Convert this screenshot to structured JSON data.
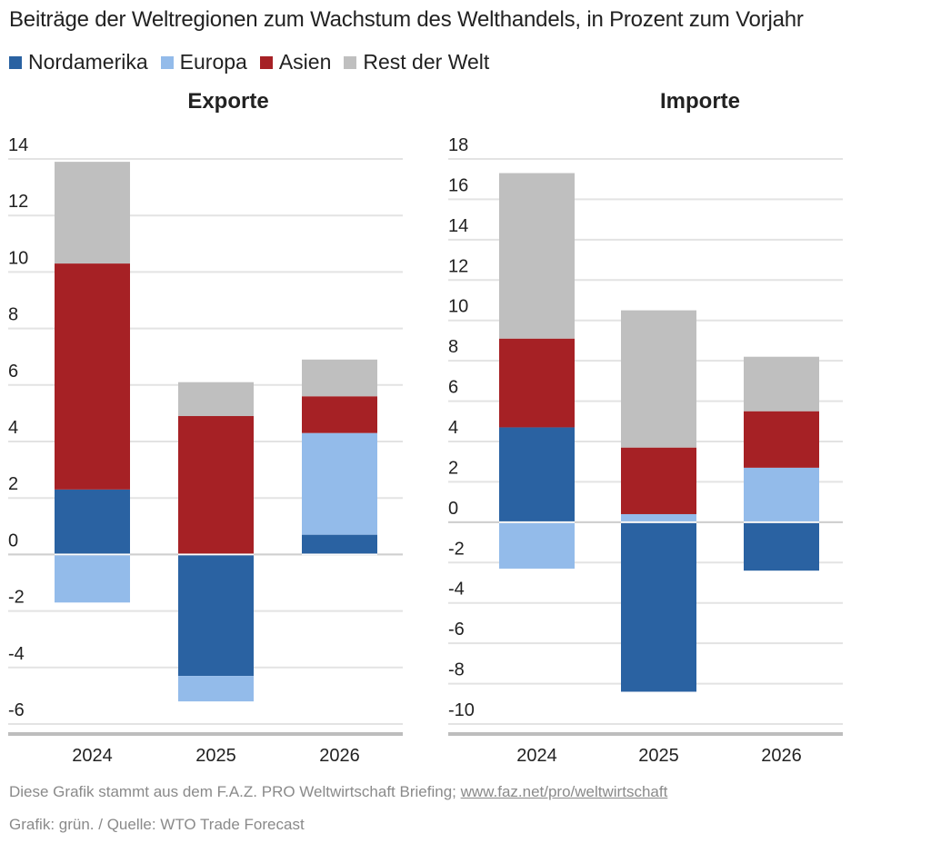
{
  "title": "Beiträge der Weltregionen zum Wachstum des Welthandels, in Prozent zum Vorjahr",
  "legend": [
    {
      "label": "Nordamerika",
      "color": "#2A62A2"
    },
    {
      "label": "Europa",
      "color": "#93BBEA"
    },
    {
      "label": "Asien",
      "color": "#A62125"
    },
    {
      "label": "Rest der Welt",
      "color": "#BFBFBF"
    }
  ],
  "footer": {
    "source_text": "Diese Grafik stammt aus dem F.A.Z. PRO Weltwirtschaft Briefing; ",
    "source_link": "www.faz.net/pro/weltwirtschaft",
    "credit": "Grafik: grün. / Quelle: WTO Trade Forecast"
  },
  "chart_data": [
    {
      "type": "bar",
      "stacked": true,
      "title": "Exporte",
      "categories": [
        "2024",
        "2025",
        "2026"
      ],
      "series": [
        {
          "name": "Nordamerika",
          "color": "#2A62A2",
          "values": [
            2.3,
            -4.3,
            0.7
          ]
        },
        {
          "name": "Europa",
          "color": "#93BBEA",
          "values": [
            -1.7,
            -0.9,
            3.6
          ]
        },
        {
          "name": "Asien",
          "color": "#A62125",
          "values": [
            8.0,
            4.9,
            1.3
          ]
        },
        {
          "name": "Rest der Welt",
          "color": "#BFBFBF",
          "values": [
            3.6,
            1.2,
            1.3
          ]
        }
      ],
      "ylim": [
        -6,
        14
      ],
      "yticks": [
        14,
        12,
        10,
        8,
        6,
        4,
        2,
        0,
        -2,
        -4,
        -6
      ],
      "xlabel": "",
      "ylabel": "",
      "grid": true
    },
    {
      "type": "bar",
      "stacked": true,
      "title": "Importe",
      "categories": [
        "2024",
        "2025",
        "2026"
      ],
      "series": [
        {
          "name": "Nordamerika",
          "color": "#2A62A2",
          "values": [
            4.7,
            -8.4,
            -2.4
          ]
        },
        {
          "name": "Europa",
          "color": "#93BBEA",
          "values": [
            -2.3,
            0.4,
            2.7
          ]
        },
        {
          "name": "Asien",
          "color": "#A62125",
          "values": [
            4.4,
            3.3,
            2.8
          ]
        },
        {
          "name": "Rest der Welt",
          "color": "#BFBFBF",
          "values": [
            8.2,
            6.8,
            2.7
          ]
        }
      ],
      "ylim": [
        -10,
        18
      ],
      "yticks": [
        18,
        16,
        14,
        12,
        10,
        8,
        6,
        4,
        2,
        0,
        -2,
        -4,
        -6,
        -8,
        -10
      ],
      "xlabel": "",
      "ylabel": "",
      "grid": true
    }
  ]
}
